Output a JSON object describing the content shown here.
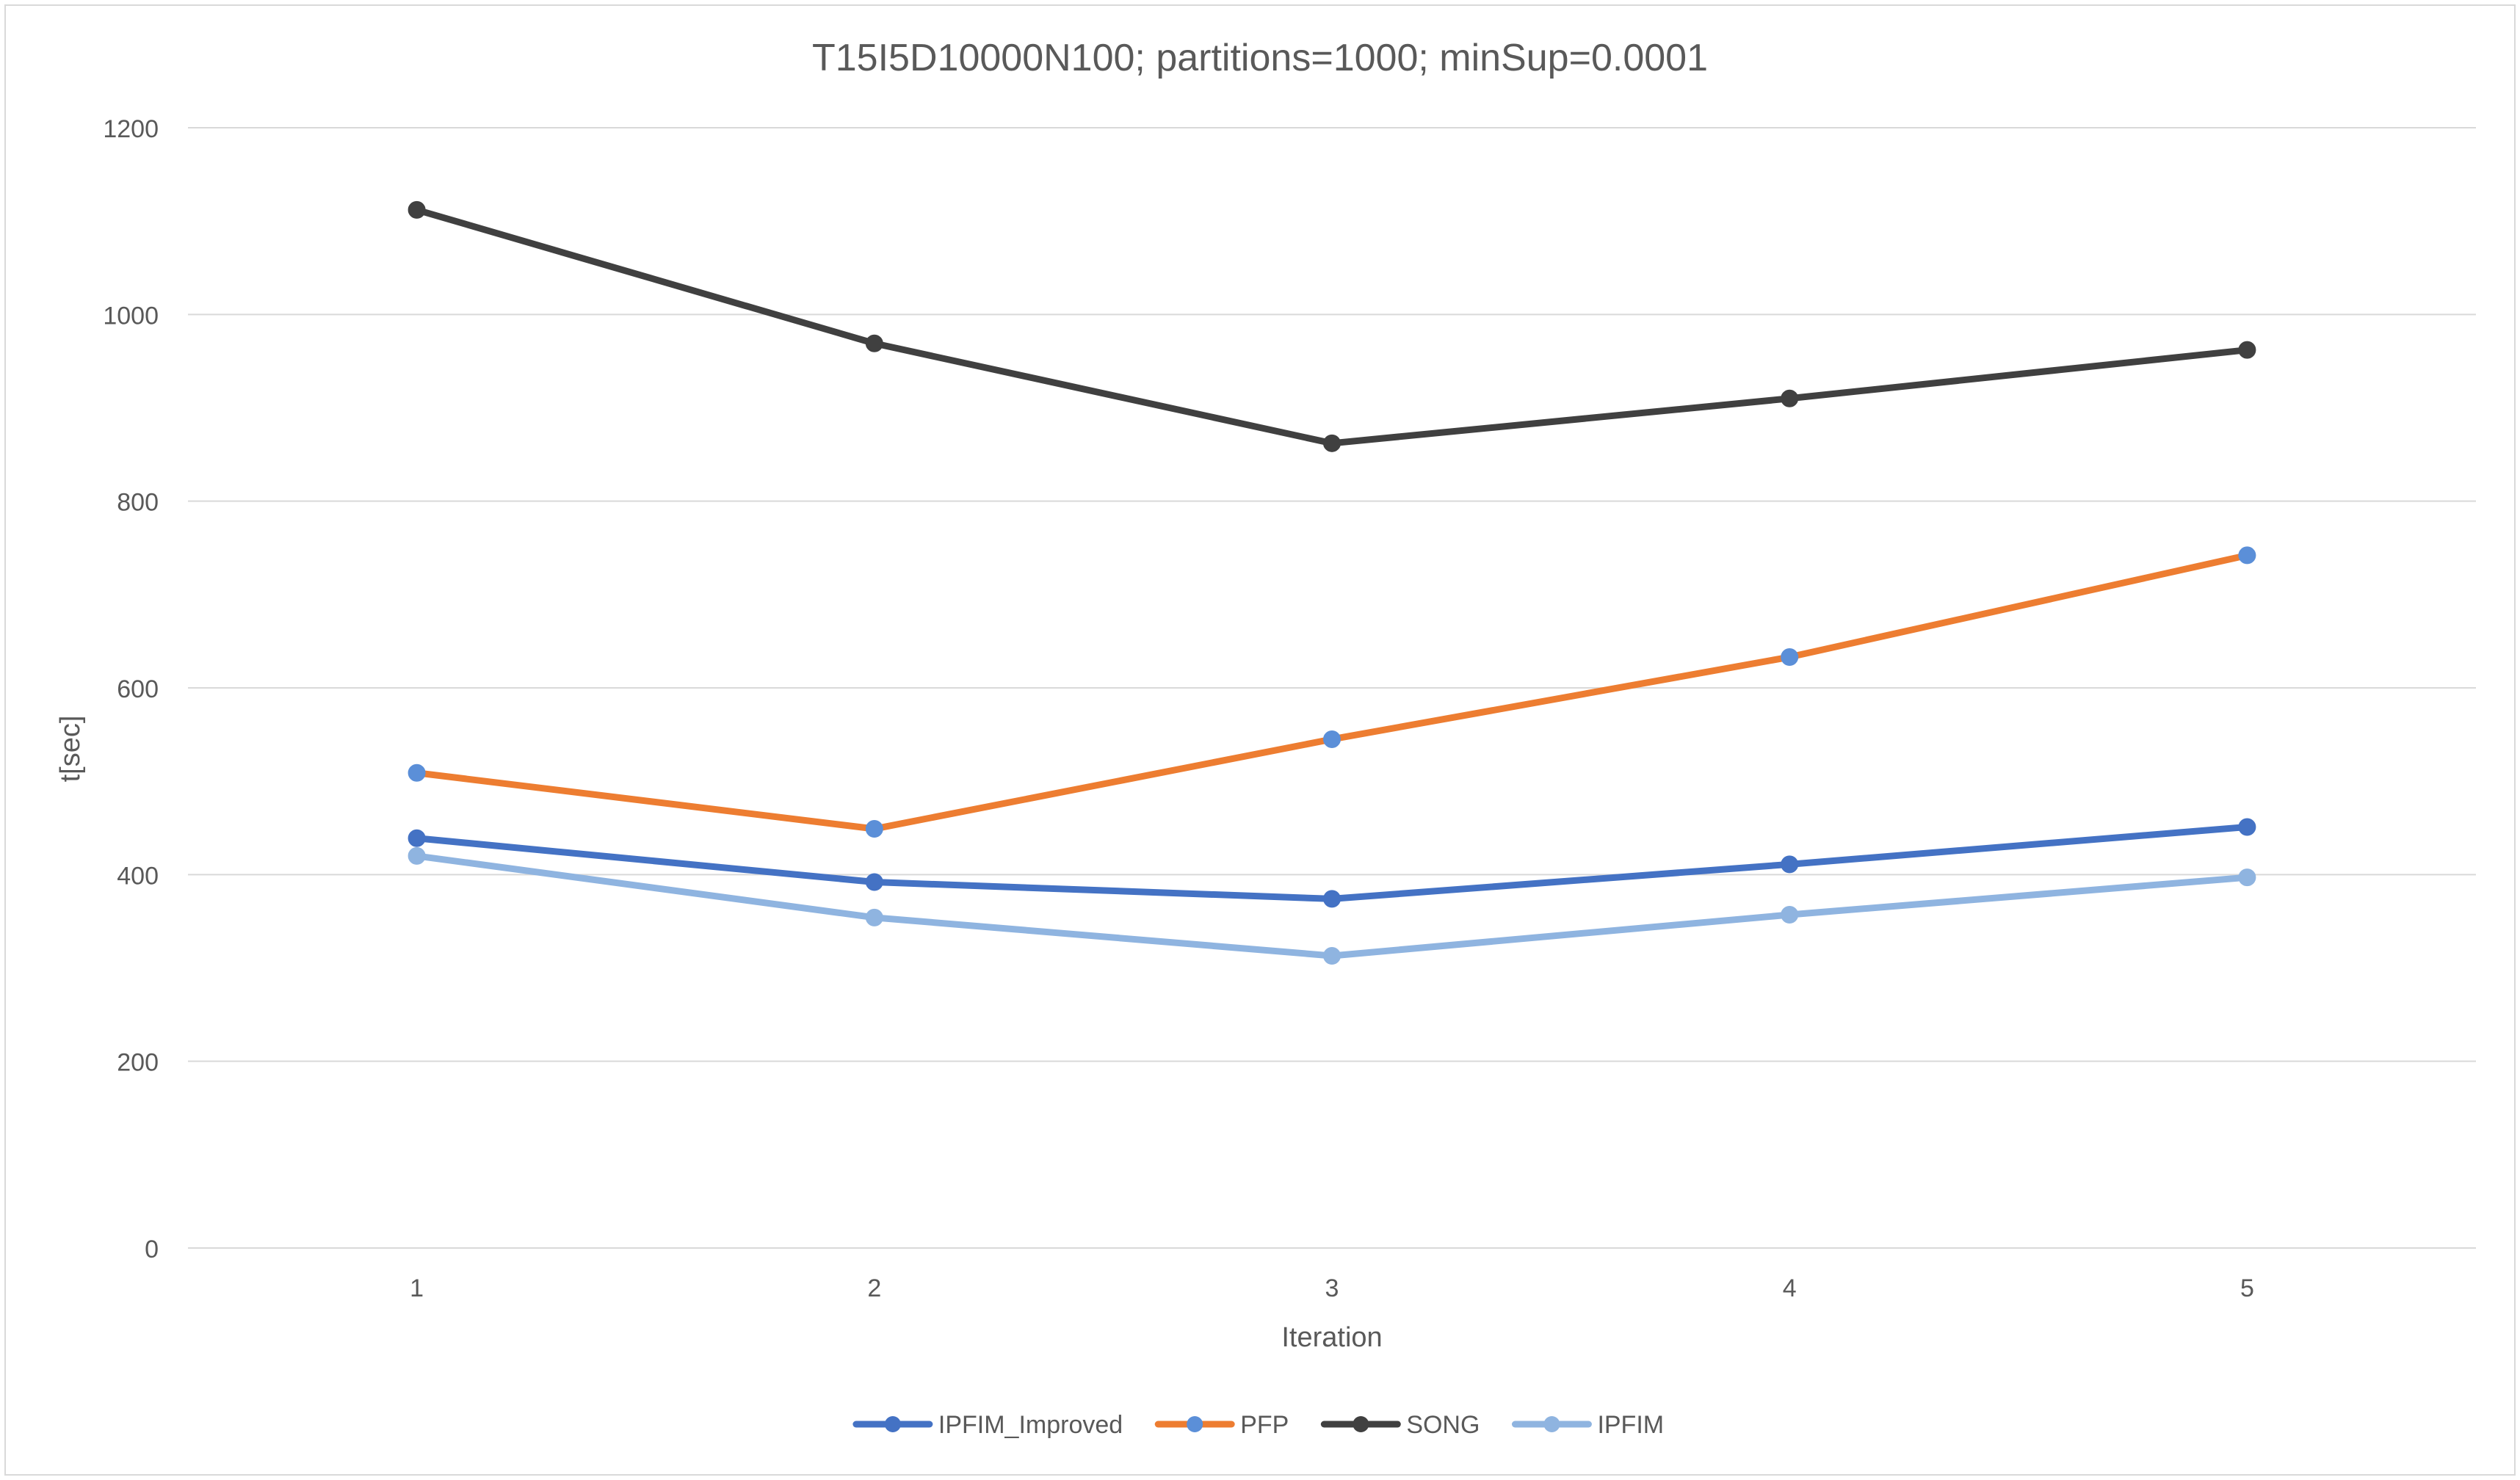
{
  "chart_data": {
    "type": "line",
    "title": "T15I5D10000N100; partitions=1000; minSup=0.0001",
    "xlabel": "Iteration",
    "ylabel": "t[sec]",
    "categories": [
      "1",
      "2",
      "3",
      "4",
      "5"
    ],
    "ylim": [
      0,
      1200
    ],
    "yticks": [
      0,
      200,
      400,
      600,
      800,
      1000,
      1200
    ],
    "grid": true,
    "legend_position": "bottom",
    "series": [
      {
        "name": "IPFIM_Improved",
        "values": [
          439,
          392,
          374,
          411,
          451
        ],
        "line_color": "#4472c4",
        "marker_color": "#4472c4"
      },
      {
        "name": "PFP",
        "values": [
          509,
          449,
          545,
          633,
          742
        ],
        "line_color": "#ed7d31",
        "marker_color": "#5b8fd8"
      },
      {
        "name": "SONG",
        "values": [
          1112,
          969,
          862,
          910,
          962
        ],
        "line_color": "#404040",
        "marker_color": "#404040"
      },
      {
        "name": "IPFIM",
        "values": [
          420,
          354,
          313,
          357,
          397
        ],
        "line_color": "#8fb4e0",
        "marker_color": "#8fb4e0"
      }
    ]
  }
}
